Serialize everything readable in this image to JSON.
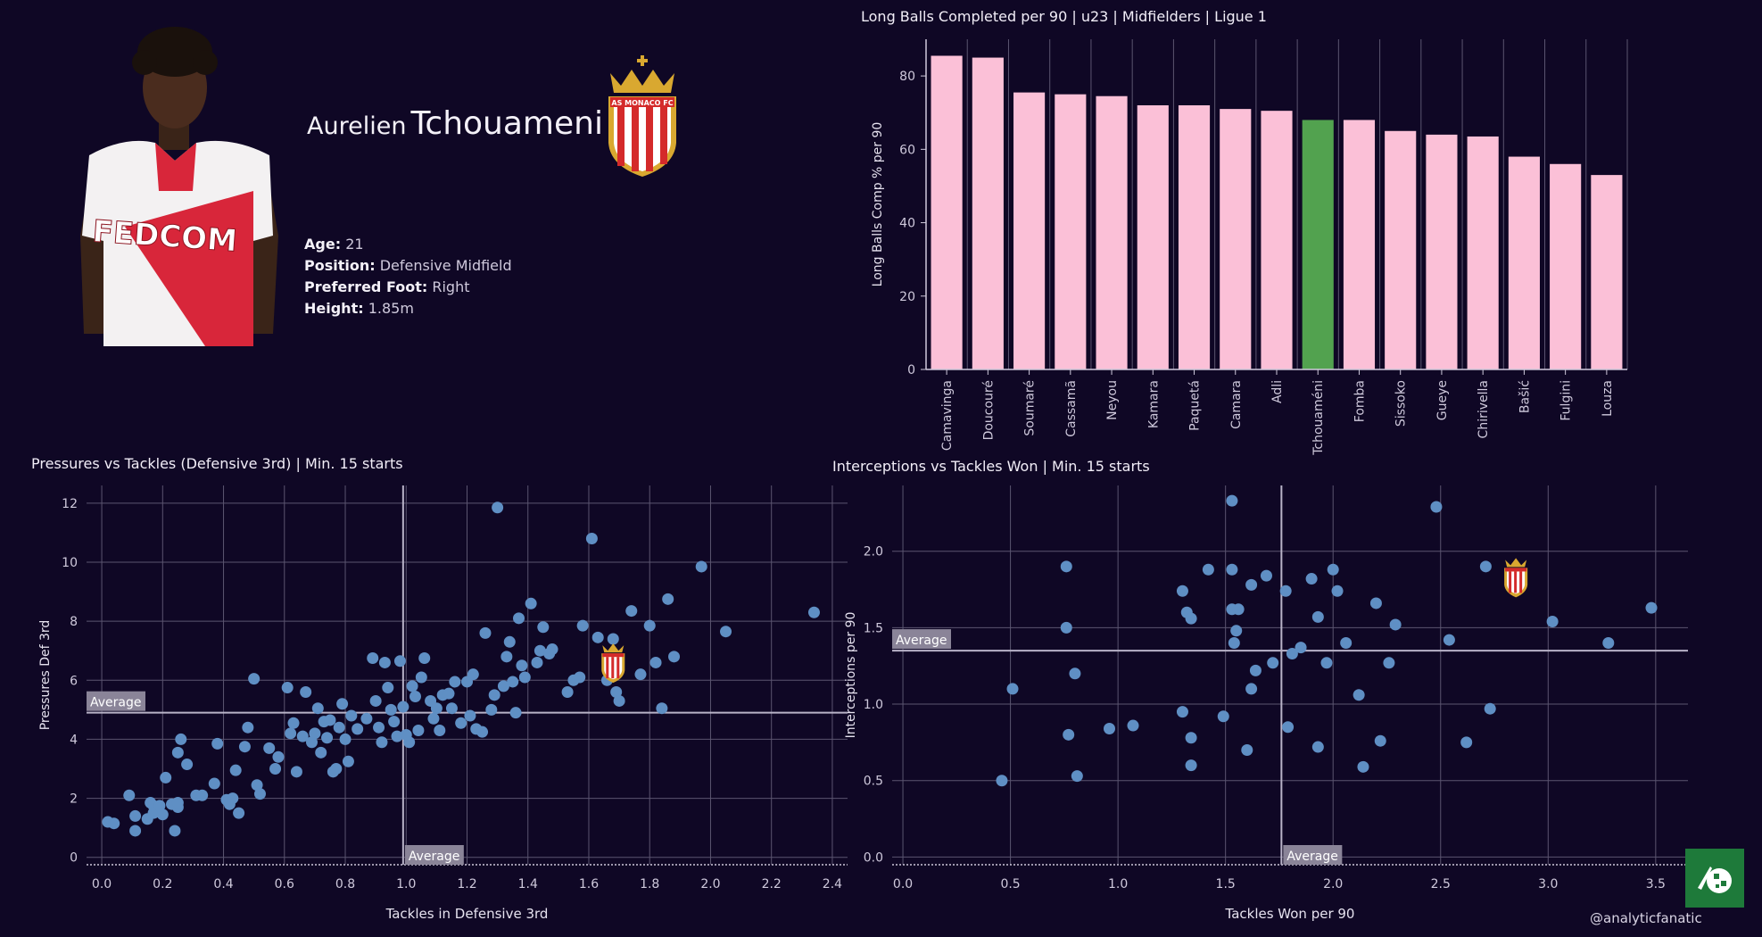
{
  "player": {
    "first_name": "Aurelien",
    "last_name": "Tchouameni",
    "info": [
      {
        "label": "Age:",
        "value": "21"
      },
      {
        "label": "Position:",
        "value": "Defensive Midfield"
      },
      {
        "label": "Preferred Foot:",
        "value": "Right"
      },
      {
        "label": "Height:",
        "value": "1.85m"
      }
    ],
    "shirt_text": "FEDCOM",
    "club_badge_text": "AS MONACO FC"
  },
  "credit": "@analyticfanatic",
  "colors": {
    "background": "#0f0725",
    "bar": "#fbc0d7",
    "highlight_bar": "#52a24f",
    "point": "#5f8fc4",
    "grid": "#5b5570",
    "average_line": "#b9b3c8",
    "badge_red": "#d42a2a",
    "badge_gold": "#d9a830"
  },
  "chart_data": [
    {
      "type": "bar",
      "title": "Long Balls Completed per 90 | u23 | Midfielders | Ligue 1",
      "ylabel": "Long Balls Comp % per 90",
      "xlabel": "",
      "categories": [
        "Camavinga",
        "Doucouré",
        "Soumaré",
        "Cassamã",
        "Neyou",
        "Kamara",
        "Paquetá",
        "Camara",
        "Adli",
        "Tchouaméni",
        "Fomba",
        "Sissoko",
        "Gueye",
        "Chirivella",
        "Bašić",
        "Fulgini",
        "Louza"
      ],
      "values": [
        85.5,
        85,
        75.5,
        75,
        74.5,
        72,
        72,
        71,
        70.5,
        68,
        68,
        65,
        64,
        63.5,
        58,
        56,
        53
      ],
      "highlight": "Tchouaméni",
      "ylim": [
        0,
        90
      ],
      "yticks": [
        0,
        20,
        40,
        60,
        80
      ],
      "grid": "vertical"
    },
    {
      "type": "scatter",
      "title": "Pressures vs Tackles (Defensive 3rd) | Min. 15 starts",
      "xlabel": "Tackles in Defensive 3rd",
      "ylabel": "Pressures Def 3rd",
      "xlim": [
        -0.05,
        2.45
      ],
      "ylim": [
        -0.25,
        12.6
      ],
      "xticks": [
        0.0,
        0.2,
        0.4,
        0.6,
        0.8,
        1.0,
        1.2,
        1.4,
        1.6,
        1.8,
        2.0,
        2.2,
        2.4
      ],
      "yticks": [
        0,
        2,
        4,
        6,
        8,
        10,
        12
      ],
      "grid": true,
      "average": {
        "x": 0.99,
        "y": 4.9,
        "label": "Average"
      },
      "highlight_point": {
        "x": 1.68,
        "y": 6.7
      },
      "points": [
        [
          0.02,
          1.2
        ],
        [
          0.04,
          1.15
        ],
        [
          0.09,
          2.1
        ],
        [
          0.11,
          1.4
        ],
        [
          0.11,
          0.9
        ],
        [
          0.15,
          1.3
        ],
        [
          0.16,
          1.85
        ],
        [
          0.17,
          1.5
        ],
        [
          0.17,
          1.75
        ],
        [
          0.18,
          1.6
        ],
        [
          0.19,
          1.75
        ],
        [
          0.2,
          1.45
        ],
        [
          0.21,
          2.7
        ],
        [
          0.23,
          1.8
        ],
        [
          0.24,
          0.9
        ],
        [
          0.25,
          1.7
        ],
        [
          0.25,
          1.85
        ],
        [
          0.25,
          3.55
        ],
        [
          0.26,
          4.0
        ],
        [
          0.28,
          3.15
        ],
        [
          0.31,
          2.1
        ],
        [
          0.33,
          2.1
        ],
        [
          0.37,
          2.5
        ],
        [
          0.38,
          3.85
        ],
        [
          0.41,
          1.95
        ],
        [
          0.42,
          1.8
        ],
        [
          0.43,
          2.0
        ],
        [
          0.44,
          2.95
        ],
        [
          0.45,
          1.5
        ],
        [
          0.47,
          3.75
        ],
        [
          0.48,
          4.4
        ],
        [
          0.5,
          6.05
        ],
        [
          0.51,
          2.45
        ],
        [
          0.52,
          2.15
        ],
        [
          0.55,
          3.7
        ],
        [
          0.57,
          3.0
        ],
        [
          0.58,
          3.4
        ],
        [
          0.61,
          5.75
        ],
        [
          0.62,
          4.2
        ],
        [
          0.63,
          4.55
        ],
        [
          0.64,
          2.9
        ],
        [
          0.66,
          4.1
        ],
        [
          0.67,
          5.6
        ],
        [
          0.69,
          3.9
        ],
        [
          0.7,
          4.2
        ],
        [
          0.71,
          5.05
        ],
        [
          0.72,
          3.55
        ],
        [
          0.73,
          4.6
        ],
        [
          0.74,
          4.05
        ],
        [
          0.75,
          4.65
        ],
        [
          0.76,
          2.9
        ],
        [
          0.77,
          3.0
        ],
        [
          0.78,
          4.4
        ],
        [
          0.79,
          5.2
        ],
        [
          0.8,
          4.0
        ],
        [
          0.81,
          3.25
        ],
        [
          0.82,
          4.8
        ],
        [
          0.84,
          4.35
        ],
        [
          0.87,
          4.7
        ],
        [
          0.89,
          6.75
        ],
        [
          0.9,
          5.3
        ],
        [
          0.91,
          4.4
        ],
        [
          0.92,
          3.9
        ],
        [
          0.93,
          6.6
        ],
        [
          0.94,
          5.75
        ],
        [
          0.95,
          5.0
        ],
        [
          0.96,
          4.6
        ],
        [
          0.97,
          4.1
        ],
        [
          0.98,
          6.65
        ],
        [
          0.99,
          5.1
        ],
        [
          1.0,
          4.15
        ],
        [
          1.01,
          3.9
        ],
        [
          1.02,
          5.8
        ],
        [
          1.03,
          5.45
        ],
        [
          1.04,
          4.3
        ],
        [
          1.05,
          6.1
        ],
        [
          1.06,
          6.75
        ],
        [
          1.08,
          5.3
        ],
        [
          1.09,
          4.7
        ],
        [
          1.1,
          5.05
        ],
        [
          1.11,
          4.3
        ],
        [
          1.12,
          5.5
        ],
        [
          1.14,
          5.55
        ],
        [
          1.15,
          5.05
        ],
        [
          1.16,
          5.95
        ],
        [
          1.18,
          4.55
        ],
        [
          1.2,
          5.95
        ],
        [
          1.21,
          4.8
        ],
        [
          1.22,
          6.2
        ],
        [
          1.23,
          4.35
        ],
        [
          1.25,
          4.25
        ],
        [
          1.26,
          7.6
        ],
        [
          1.28,
          5.0
        ],
        [
          1.29,
          5.5
        ],
        [
          1.3,
          11.85
        ],
        [
          1.32,
          5.8
        ],
        [
          1.33,
          6.8
        ],
        [
          1.34,
          7.3
        ],
        [
          1.35,
          5.95
        ],
        [
          1.36,
          4.9
        ],
        [
          1.37,
          8.1
        ],
        [
          1.38,
          6.5
        ],
        [
          1.39,
          6.1
        ],
        [
          1.41,
          8.6
        ],
        [
          1.43,
          6.6
        ],
        [
          1.44,
          7.0
        ],
        [
          1.45,
          7.8
        ],
        [
          1.47,
          6.9
        ],
        [
          1.48,
          7.05
        ],
        [
          1.53,
          5.6
        ],
        [
          1.55,
          6.0
        ],
        [
          1.57,
          6.1
        ],
        [
          1.58,
          7.85
        ],
        [
          1.61,
          10.8
        ],
        [
          1.63,
          7.45
        ],
        [
          1.66,
          6.0
        ],
        [
          1.68,
          7.4
        ],
        [
          1.69,
          5.6
        ],
        [
          1.7,
          5.3
        ],
        [
          1.74,
          8.35
        ],
        [
          1.77,
          6.2
        ],
        [
          1.8,
          7.85
        ],
        [
          1.82,
          6.6
        ],
        [
          1.84,
          5.05
        ],
        [
          1.86,
          8.75
        ],
        [
          1.88,
          6.8
        ],
        [
          1.97,
          9.85
        ],
        [
          2.05,
          7.65
        ],
        [
          2.34,
          8.3
        ]
      ]
    },
    {
      "type": "scatter",
      "title": "Interceptions vs Tackles Won | Min. 15 starts",
      "xlabel": "Tackles Won per 90",
      "ylabel": "Interceptions per 90",
      "xlim": [
        -0.05,
        3.65
      ],
      "ylim": [
        -0.05,
        2.43
      ],
      "xticks": [
        0.0,
        0.5,
        1.0,
        1.5,
        2.0,
        2.5,
        3.0,
        3.5
      ],
      "yticks": [
        0.0,
        0.5,
        1.0,
        1.5,
        2.0
      ],
      "grid": true,
      "average": {
        "x": 1.76,
        "y": 1.35,
        "label": "Average"
      },
      "highlight_point": {
        "x": 2.85,
        "y": 1.85
      },
      "points": [
        [
          0.46,
          0.5
        ],
        [
          0.51,
          1.1
        ],
        [
          0.76,
          1.9
        ],
        [
          0.76,
          1.5
        ],
        [
          0.77,
          0.8
        ],
        [
          0.8,
          1.2
        ],
        [
          0.81,
          0.53
        ],
        [
          0.96,
          0.84
        ],
        [
          1.07,
          0.86
        ],
        [
          1.3,
          0.95
        ],
        [
          1.3,
          1.74
        ],
        [
          1.32,
          1.6
        ],
        [
          1.34,
          0.6
        ],
        [
          1.34,
          1.56
        ],
        [
          1.34,
          0.78
        ],
        [
          1.42,
          1.88
        ],
        [
          1.49,
          0.92
        ],
        [
          1.53,
          2.33
        ],
        [
          1.53,
          1.88
        ],
        [
          1.53,
          1.62
        ],
        [
          1.54,
          1.4
        ],
        [
          1.55,
          1.48
        ],
        [
          1.56,
          1.62
        ],
        [
          1.6,
          0.7
        ],
        [
          1.62,
          1.78
        ],
        [
          1.62,
          1.1
        ],
        [
          1.64,
          1.22
        ],
        [
          1.69,
          1.84
        ],
        [
          1.72,
          1.27
        ],
        [
          1.78,
          1.74
        ],
        [
          1.79,
          0.85
        ],
        [
          1.81,
          1.33
        ],
        [
          1.85,
          1.37
        ],
        [
          1.9,
          1.82
        ],
        [
          1.93,
          0.72
        ],
        [
          1.93,
          1.57
        ],
        [
          1.97,
          1.27
        ],
        [
          2.0,
          1.88
        ],
        [
          2.02,
          1.74
        ],
        [
          2.06,
          1.4
        ],
        [
          2.12,
          1.06
        ],
        [
          2.14,
          0.59
        ],
        [
          2.2,
          1.66
        ],
        [
          2.22,
          0.76
        ],
        [
          2.26,
          1.27
        ],
        [
          2.29,
          1.52
        ],
        [
          2.48,
          2.29
        ],
        [
          2.54,
          1.42
        ],
        [
          2.62,
          0.75
        ],
        [
          2.71,
          1.9
        ],
        [
          2.73,
          0.97
        ],
        [
          3.02,
          1.54
        ],
        [
          3.28,
          1.4
        ],
        [
          3.48,
          1.63
        ]
      ]
    }
  ]
}
